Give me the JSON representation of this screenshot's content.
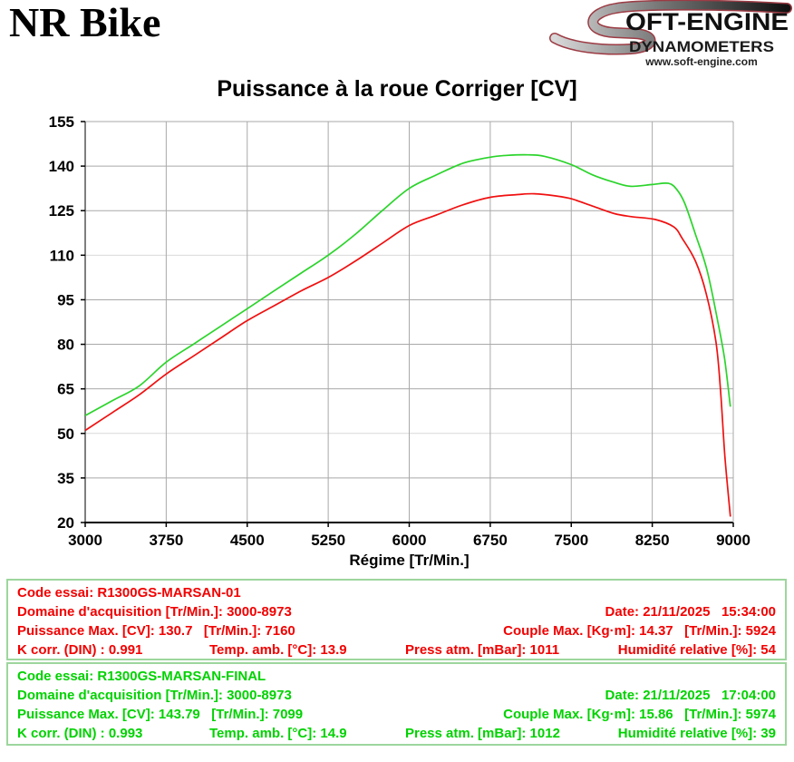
{
  "header": {
    "bike_name": "NR Bike",
    "logo": {
      "brand_s": "S",
      "brand_rest": "OFT-ENGINE",
      "subtitle": "DYNAMOMETERS",
      "website": "www.soft-engine.com"
    }
  },
  "chart_data": {
    "type": "line",
    "title": "Puissance à la roue Corriger [CV]",
    "xlabel": "Régime [Tr/Min.]",
    "ylabel": "",
    "xlim": [
      3000,
      9000
    ],
    "ylim": [
      20,
      155
    ],
    "x_ticks": [
      3000,
      3750,
      4500,
      5250,
      6000,
      6750,
      7500,
      8250,
      9000
    ],
    "y_ticks": [
      20,
      35,
      50,
      65,
      80,
      95,
      110,
      125,
      140,
      155
    ],
    "grid": true,
    "light_grid_y": [
      50,
      110
    ],
    "legend_position": "none",
    "series": [
      {
        "name": "R1300GS-MARSAN-01",
        "color": "#f01010",
        "points": [
          [
            3000,
            51
          ],
          [
            3250,
            57
          ],
          [
            3500,
            63
          ],
          [
            3750,
            70
          ],
          [
            4000,
            76
          ],
          [
            4250,
            82
          ],
          [
            4500,
            88
          ],
          [
            4750,
            93
          ],
          [
            5000,
            98
          ],
          [
            5250,
            102.5
          ],
          [
            5500,
            108
          ],
          [
            5750,
            114
          ],
          [
            6000,
            120
          ],
          [
            6250,
            123.5
          ],
          [
            6500,
            127
          ],
          [
            6750,
            129.5
          ],
          [
            7000,
            130.4
          ],
          [
            7160,
            130.7
          ],
          [
            7350,
            130
          ],
          [
            7500,
            129
          ],
          [
            7700,
            126.5
          ],
          [
            7900,
            124
          ],
          [
            8056,
            123
          ],
          [
            8280,
            122
          ],
          [
            8450,
            119.5
          ],
          [
            8530,
            115.5
          ],
          [
            8650,
            108
          ],
          [
            8750,
            97
          ],
          [
            8839,
            81
          ],
          [
            8881,
            65
          ],
          [
            8923,
            42
          ],
          [
            8973,
            22
          ]
        ]
      },
      {
        "name": "R1300GS-MARSAN-FINAL",
        "color": "#2bd42b",
        "points": [
          [
            3000,
            56
          ],
          [
            3250,
            61
          ],
          [
            3500,
            66
          ],
          [
            3750,
            74
          ],
          [
            4000,
            80
          ],
          [
            4250,
            86
          ],
          [
            4500,
            92
          ],
          [
            4750,
            98
          ],
          [
            5000,
            104
          ],
          [
            5250,
            110
          ],
          [
            5500,
            117
          ],
          [
            5750,
            125
          ],
          [
            6000,
            132.5
          ],
          [
            6250,
            137
          ],
          [
            6500,
            141
          ],
          [
            6750,
            143
          ],
          [
            6900,
            143.6
          ],
          [
            7099,
            143.8
          ],
          [
            7250,
            143.3
          ],
          [
            7500,
            140.5
          ],
          [
            7700,
            137
          ],
          [
            7900,
            134.5
          ],
          [
            8050,
            133.2
          ],
          [
            8250,
            133.8
          ],
          [
            8400,
            134.2
          ],
          [
            8480,
            132
          ],
          [
            8550,
            127.5
          ],
          [
            8650,
            117
          ],
          [
            8757,
            105
          ],
          [
            8855,
            88
          ],
          [
            8920,
            75
          ],
          [
            8973,
            59
          ]
        ]
      }
    ]
  },
  "tests": [
    {
      "line1": "Code essai: R1300GS-MARSAN-01",
      "line2_left": "Domaine d'acquisition [Tr/Min.]: 3000-8973",
      "line2_right": "Date: 21/11/2025   15:34:00",
      "line3_left": "Puissance Max. [CV]: 130.7   [Tr/Min.]: 7160",
      "line3_right": "Couple Max. [Kg·m]: 14.37   [Tr/Min.]: 5924",
      "line4_col1": "K corr. (DIN) : 0.991",
      "line4_col2": "Temp. amb. [°C]: 13.9",
      "line4_col3": "Press atm. [mBar]: 1011",
      "line4_col4": "Humidité relative [%]: 54"
    },
    {
      "line1": "Code essai: R1300GS-MARSAN-FINAL",
      "line2_left": "Domaine d'acquisition [Tr/Min.]: 3000-8973",
      "line2_right": "Date: 21/11/2025   17:04:00",
      "line3_left": "Puissance Max. [CV]: 143.79   [Tr/Min.]: 7099",
      "line3_right": "Couple Max. [Kg·m]: 15.86   [Tr/Min.]: 5974",
      "line4_col1": "K corr. (DIN) : 0.993",
      "line4_col2": "Temp. amb. [°C]: 14.9",
      "line4_col3": "Press atm. [mBar]: 1012",
      "line4_col4": "Humidité relative [%]: 39"
    }
  ],
  "colors": {
    "grid": "#a9a9a9",
    "grid_light": "#d9d9d9",
    "axis": "#000000",
    "tick_text": "#000000",
    "red_text": "#f20000",
    "green_text": "#00d200",
    "box_border": "#9dd69d"
  }
}
